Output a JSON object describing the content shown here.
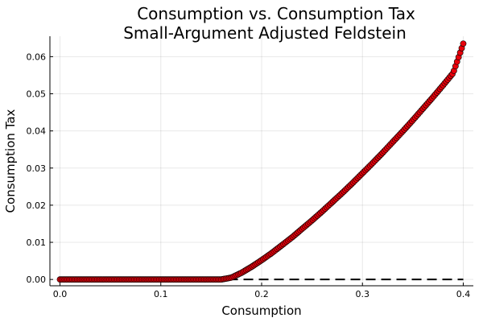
{
  "chart_data": {
    "type": "scatter",
    "title": "Consumption vs. Consumption Tax",
    "subtitle": "Small-Argument Adjusted Feldstein",
    "xlabel": "Consumption",
    "ylabel": "Consumption Tax",
    "xlim": [
      -0.01,
      0.41
    ],
    "ylim": [
      -0.0017,
      0.0655
    ],
    "xticks": [
      0.0,
      0.1,
      0.2,
      0.3,
      0.4
    ],
    "xtick_labels": [
      "0.0",
      "0.1",
      "0.2",
      "0.3",
      "0.4"
    ],
    "yticks": [
      0.0,
      0.01,
      0.02,
      0.03,
      0.04,
      0.05,
      0.06
    ],
    "ytick_labels": [
      "0.00",
      "0.01",
      "0.02",
      "0.03",
      "0.04",
      "0.05",
      "0.06"
    ],
    "grid": true,
    "legend": "none",
    "series": [
      {
        "marker_color": "#e8000b",
        "marker_edge": "#000000",
        "x": [
          0.0,
          0.01,
          0.02,
          0.03,
          0.04,
          0.05,
          0.06,
          0.07,
          0.08,
          0.09,
          0.1,
          0.11,
          0.12,
          0.13,
          0.14,
          0.15,
          0.16,
          0.17,
          0.18,
          0.19,
          0.2,
          0.21,
          0.22,
          0.23,
          0.24,
          0.25,
          0.26,
          0.27,
          0.28,
          0.29,
          0.3,
          0.31,
          0.32,
          0.33,
          0.34,
          0.35,
          0.36,
          0.37,
          0.38,
          0.39,
          0.4
        ],
        "y": [
          0.0,
          0.0,
          0.0,
          0.0,
          0.0,
          0.0,
          0.0,
          0.0,
          0.0,
          0.0,
          0.0,
          0.0,
          0.0,
          0.0,
          0.0,
          0.0,
          0.0,
          0.0005,
          0.0018,
          0.0034,
          0.0052,
          0.0071,
          0.0092,
          0.0113,
          0.0136,
          0.0159,
          0.0183,
          0.0208,
          0.0233,
          0.0259,
          0.0286,
          0.0313,
          0.0341,
          0.037,
          0.0399,
          0.0429,
          0.046,
          0.0491,
          0.0523,
          0.0556,
          0.0635
        ]
      },
      {
        "style": "dashed",
        "line_color": "#000000",
        "x": [
          0.0,
          0.4
        ],
        "y": [
          0.0,
          0.0
        ]
      }
    ]
  }
}
